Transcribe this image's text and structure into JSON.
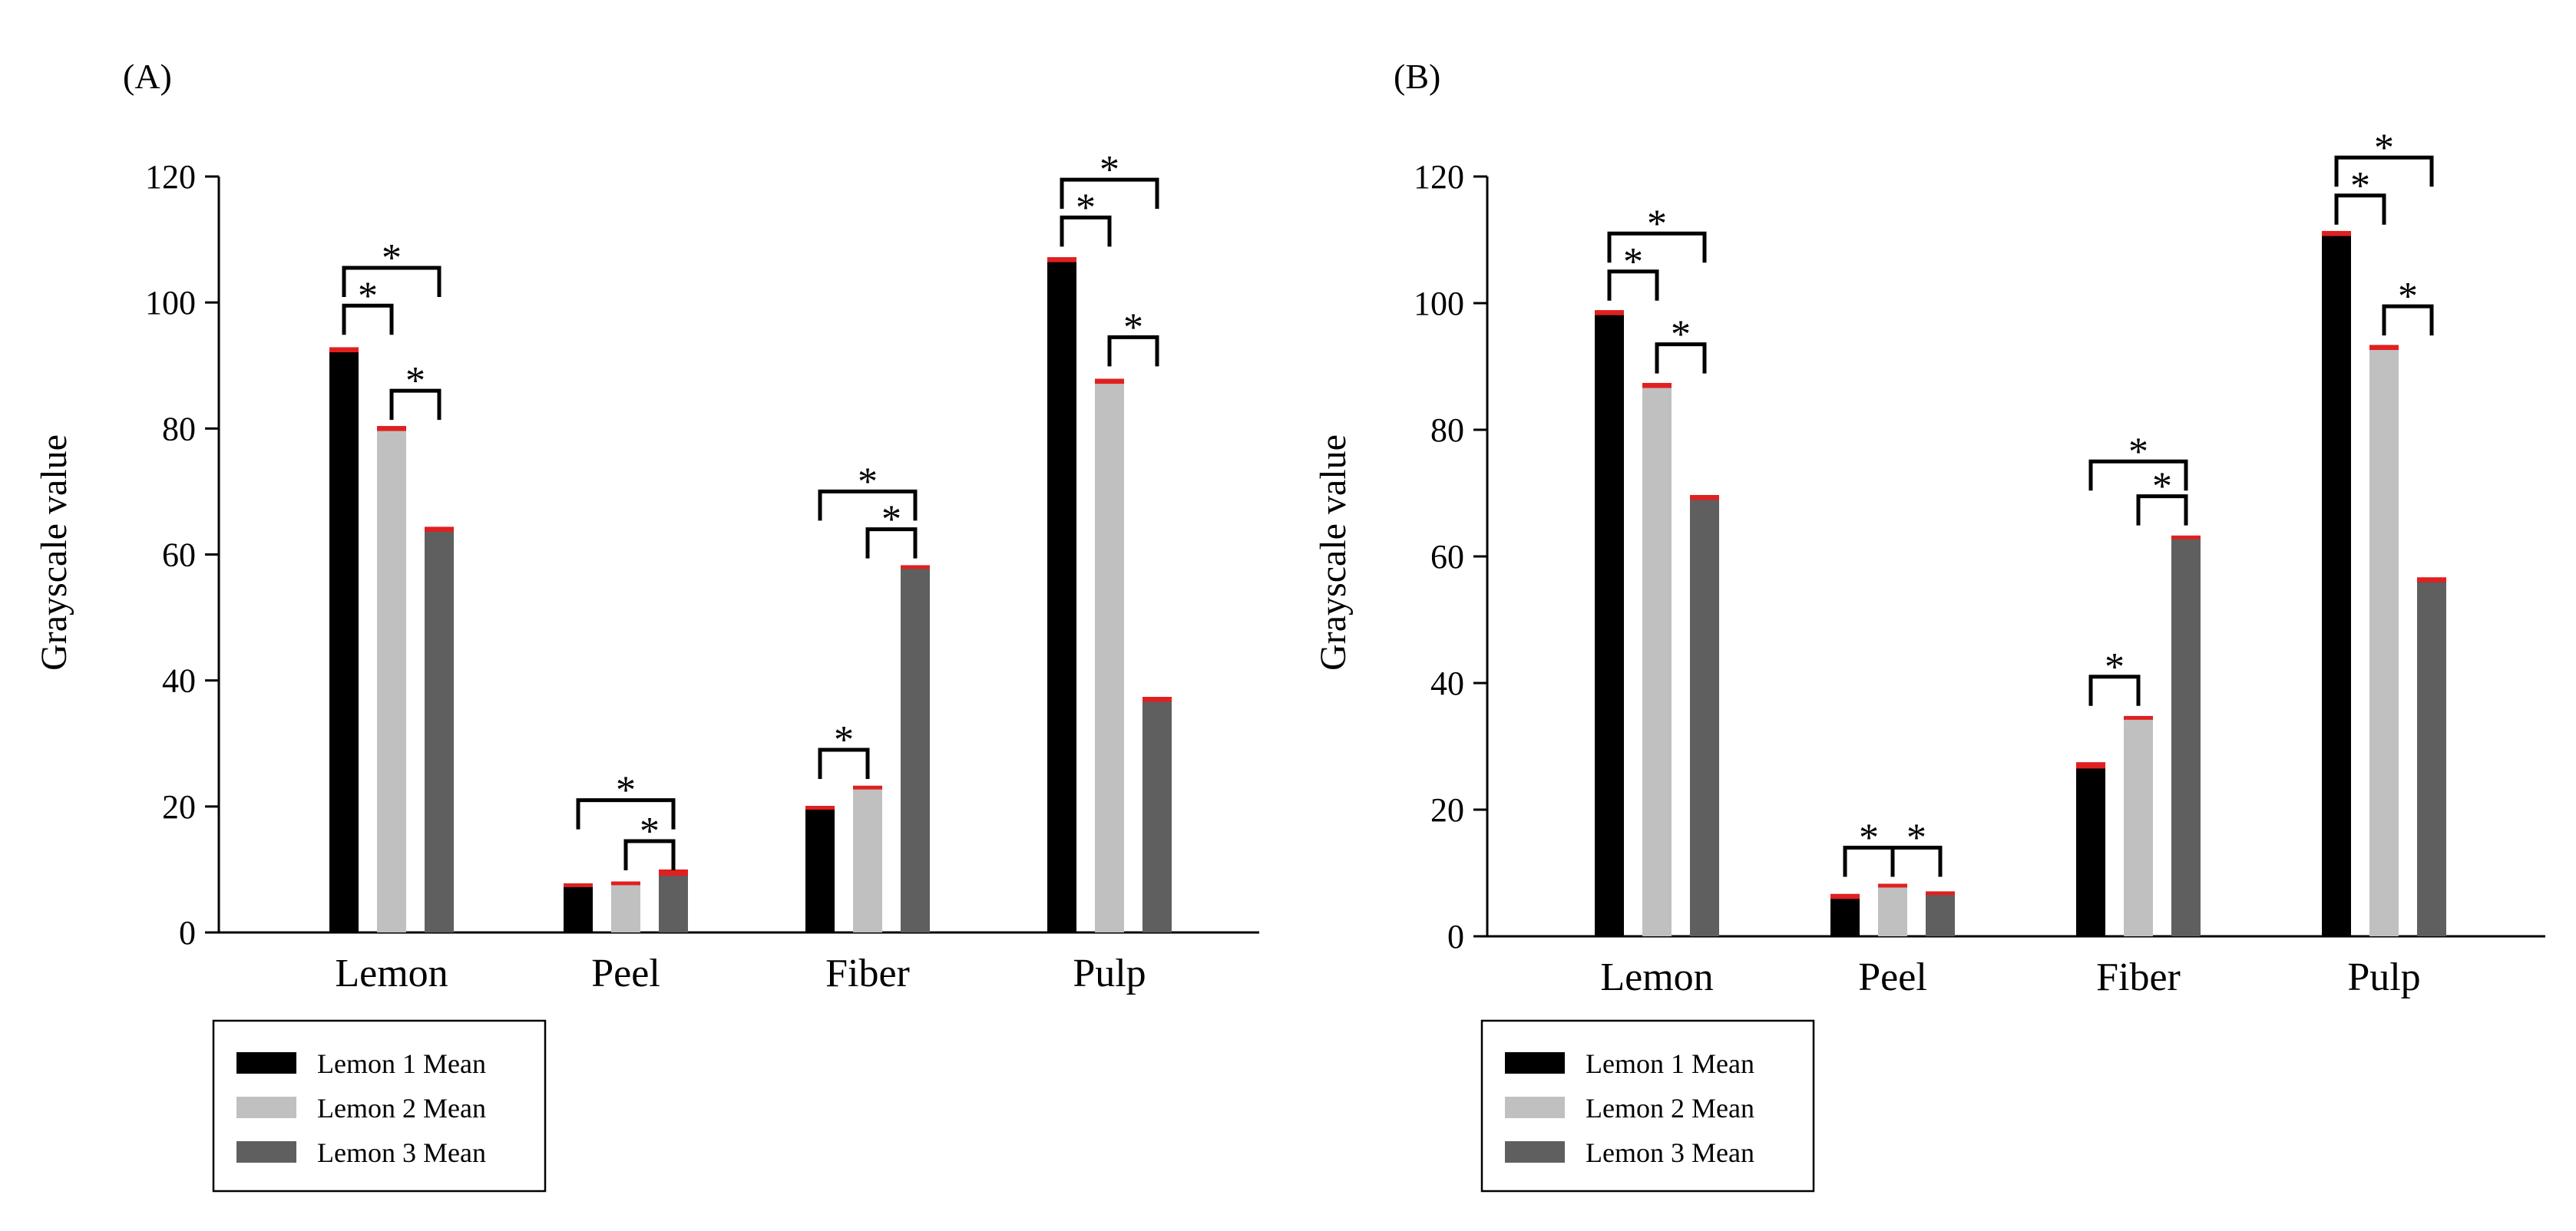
{
  "chart_data": [
    {
      "type": "bar",
      "panel_label": "(A)",
      "ylabel": "Grayscale value",
      "xlabel": "",
      "ylim": [
        0,
        120
      ],
      "yticks": [
        0,
        20,
        40,
        60,
        80,
        100,
        120
      ],
      "grid": false,
      "legend_position": "below-left",
      "categories": [
        "Lemon",
        "Peel",
        "Fiber",
        "Pulp"
      ],
      "series": [
        {
          "name": "Lemon 1 Mean",
          "color": "#000000",
          "values": [
            92.5,
            7.5,
            19.8,
            106.8
          ],
          "errors": [
            0.4,
            0.3,
            0.3,
            0.4
          ]
        },
        {
          "name": "Lemon 2 Mean",
          "color": "#c0c0c0",
          "values": [
            80.0,
            7.8,
            23.0,
            87.5
          ],
          "errors": [
            0.4,
            0.3,
            0.3,
            0.4
          ]
        },
        {
          "name": "Lemon 3 Mean",
          "color": "#5f5f5f",
          "values": [
            64.0,
            9.5,
            58.0,
            37.0
          ],
          "errors": [
            0.4,
            0.5,
            0.3,
            0.4
          ]
        }
      ],
      "significance": [
        {
          "category": 0,
          "from": 0,
          "to": 1,
          "y": 99.5,
          "label": "*"
        },
        {
          "category": 0,
          "from": 0,
          "to": 2,
          "y": 105.5,
          "label": "*"
        },
        {
          "category": 0,
          "from": 1,
          "to": 2,
          "y": 86.0,
          "label": "*"
        },
        {
          "category": 1,
          "from": 0,
          "to": 2,
          "y": 21.0,
          "label": "*"
        },
        {
          "category": 1,
          "from": 1,
          "to": 2,
          "y": 14.5,
          "label": "*"
        },
        {
          "category": 2,
          "from": 0,
          "to": 1,
          "y": 29.0,
          "label": "*"
        },
        {
          "category": 2,
          "from": 0,
          "to": 2,
          "y": 70.0,
          "label": "*"
        },
        {
          "category": 2,
          "from": 1,
          "to": 2,
          "y": 64.0,
          "label": "*"
        },
        {
          "category": 3,
          "from": 0,
          "to": 1,
          "y": 113.5,
          "label": "*"
        },
        {
          "category": 3,
          "from": 0,
          "to": 2,
          "y": 119.5,
          "label": "*"
        },
        {
          "category": 3,
          "from": 1,
          "to": 2,
          "y": 94.5,
          "label": "*"
        }
      ]
    },
    {
      "type": "bar",
      "panel_label": "(B)",
      "ylabel": "Grayscale value",
      "xlabel": "",
      "ylim": [
        0,
        120
      ],
      "yticks": [
        0,
        20,
        40,
        60,
        80,
        100,
        120
      ],
      "grid": false,
      "legend_position": "below-left",
      "categories": [
        "Lemon",
        "Peel",
        "Fiber",
        "Pulp"
      ],
      "series": [
        {
          "name": "Lemon 1 Mean",
          "color": "#000000",
          "values": [
            98.5,
            6.3,
            27.0,
            111.0
          ],
          "errors": [
            0.4,
            0.4,
            0.5,
            0.4
          ]
        },
        {
          "name": "Lemon 2 Mean",
          "color": "#c0c0c0",
          "values": [
            87.0,
            8.0,
            34.5,
            93.0
          ],
          "errors": [
            0.4,
            0.3,
            0.3,
            0.4
          ]
        },
        {
          "name": "Lemon 3 Mean",
          "color": "#5f5f5f",
          "values": [
            69.3,
            6.8,
            63.0,
            56.3
          ],
          "errors": [
            0.4,
            0.3,
            0.3,
            0.4
          ]
        }
      ],
      "significance": [
        {
          "category": 0,
          "from": 0,
          "to": 1,
          "y": 105.0,
          "label": "*"
        },
        {
          "category": 0,
          "from": 0,
          "to": 2,
          "y": 111.0,
          "label": "*"
        },
        {
          "category": 0,
          "from": 1,
          "to": 2,
          "y": 93.5,
          "label": "*"
        },
        {
          "category": 1,
          "from": 0,
          "to": 1,
          "y": 14.0,
          "label": "*"
        },
        {
          "category": 1,
          "from": 1,
          "to": 2,
          "y": 14.0,
          "label": "*"
        },
        {
          "category": 2,
          "from": 0,
          "to": 1,
          "y": 41.0,
          "label": "*"
        },
        {
          "category": 2,
          "from": 0,
          "to": 2,
          "y": 75.0,
          "label": "*"
        },
        {
          "category": 2,
          "from": 1,
          "to": 2,
          "y": 69.5,
          "label": "*"
        },
        {
          "category": 3,
          "from": 0,
          "to": 1,
          "y": 117.0,
          "label": "*"
        },
        {
          "category": 3,
          "from": 0,
          "to": 2,
          "y": 123.0,
          "label": "*"
        },
        {
          "category": 3,
          "from": 1,
          "to": 2,
          "y": 99.5,
          "label": "*"
        }
      ]
    }
  ]
}
